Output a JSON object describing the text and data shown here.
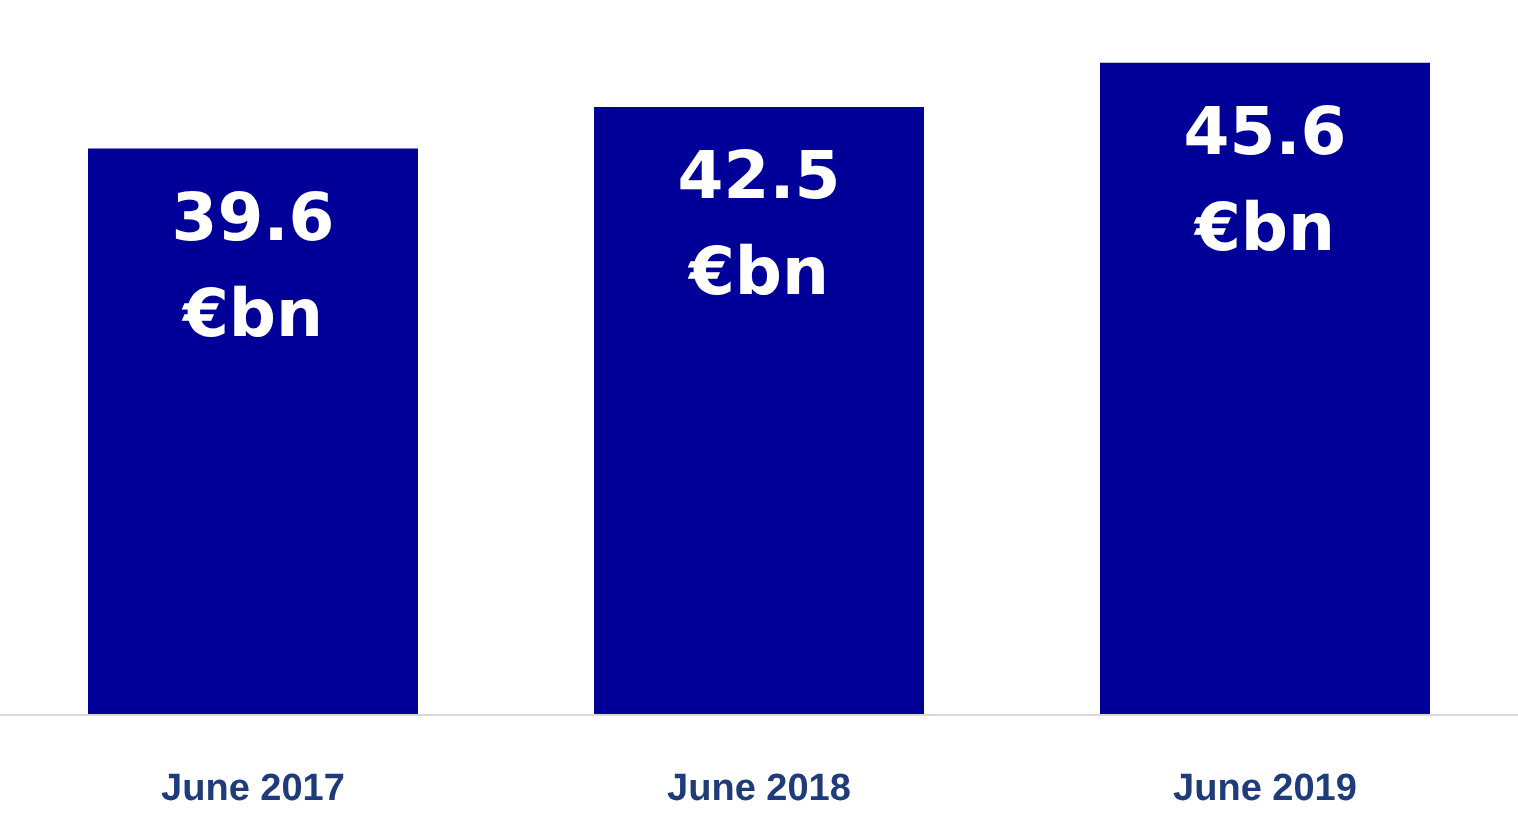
{
  "chart_data": {
    "type": "bar",
    "categories": [
      "June 2017",
      "June 2018",
      "June 2019"
    ],
    "values": [
      39.6,
      42.5,
      45.6
    ],
    "color": "#000099",
    "value_labels": [
      "39.6\n€bn",
      "42.5\n€bn",
      "45.6\n€bn"
    ],
    "tick_labels": "x"
  }
}
